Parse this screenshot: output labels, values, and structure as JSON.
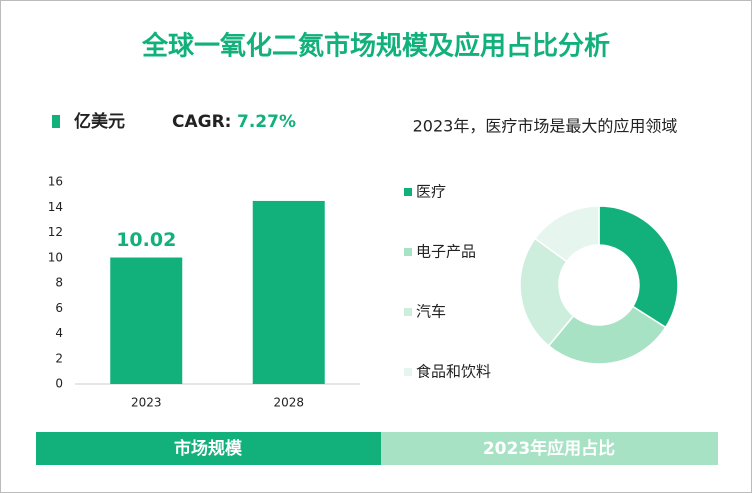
{
  "title": "全球一氧化二氮市场规模及应用占比分析",
  "cagr": {
    "label": "CAGR:",
    "value": "7.27%"
  },
  "footer": [
    "市场规模",
    "2023年应用占比"
  ],
  "chart_data": [
    {
      "type": "bar",
      "categories": [
        "2023",
        "2028"
      ],
      "series": [
        {
          "name": "亿美元",
          "color": "#12b07a",
          "values": [
            10.02,
            14.5
          ]
        }
      ],
      "ylim": [
        0,
        16
      ],
      "yticks": [
        0,
        2,
        4,
        6,
        8,
        10,
        12,
        14,
        16
      ]
    },
    {
      "type": "pie",
      "title": "2023年，医疗市场是最大的应用领域",
      "categories": [
        "医疗",
        "电子产品",
        "汽车",
        "食品和饮料"
      ],
      "values": [
        34,
        27,
        24,
        15
      ],
      "colors": [
        "#12b07a",
        "#a8e2c4",
        "#cdeedd",
        "#e6f6ee"
      ]
    }
  ]
}
